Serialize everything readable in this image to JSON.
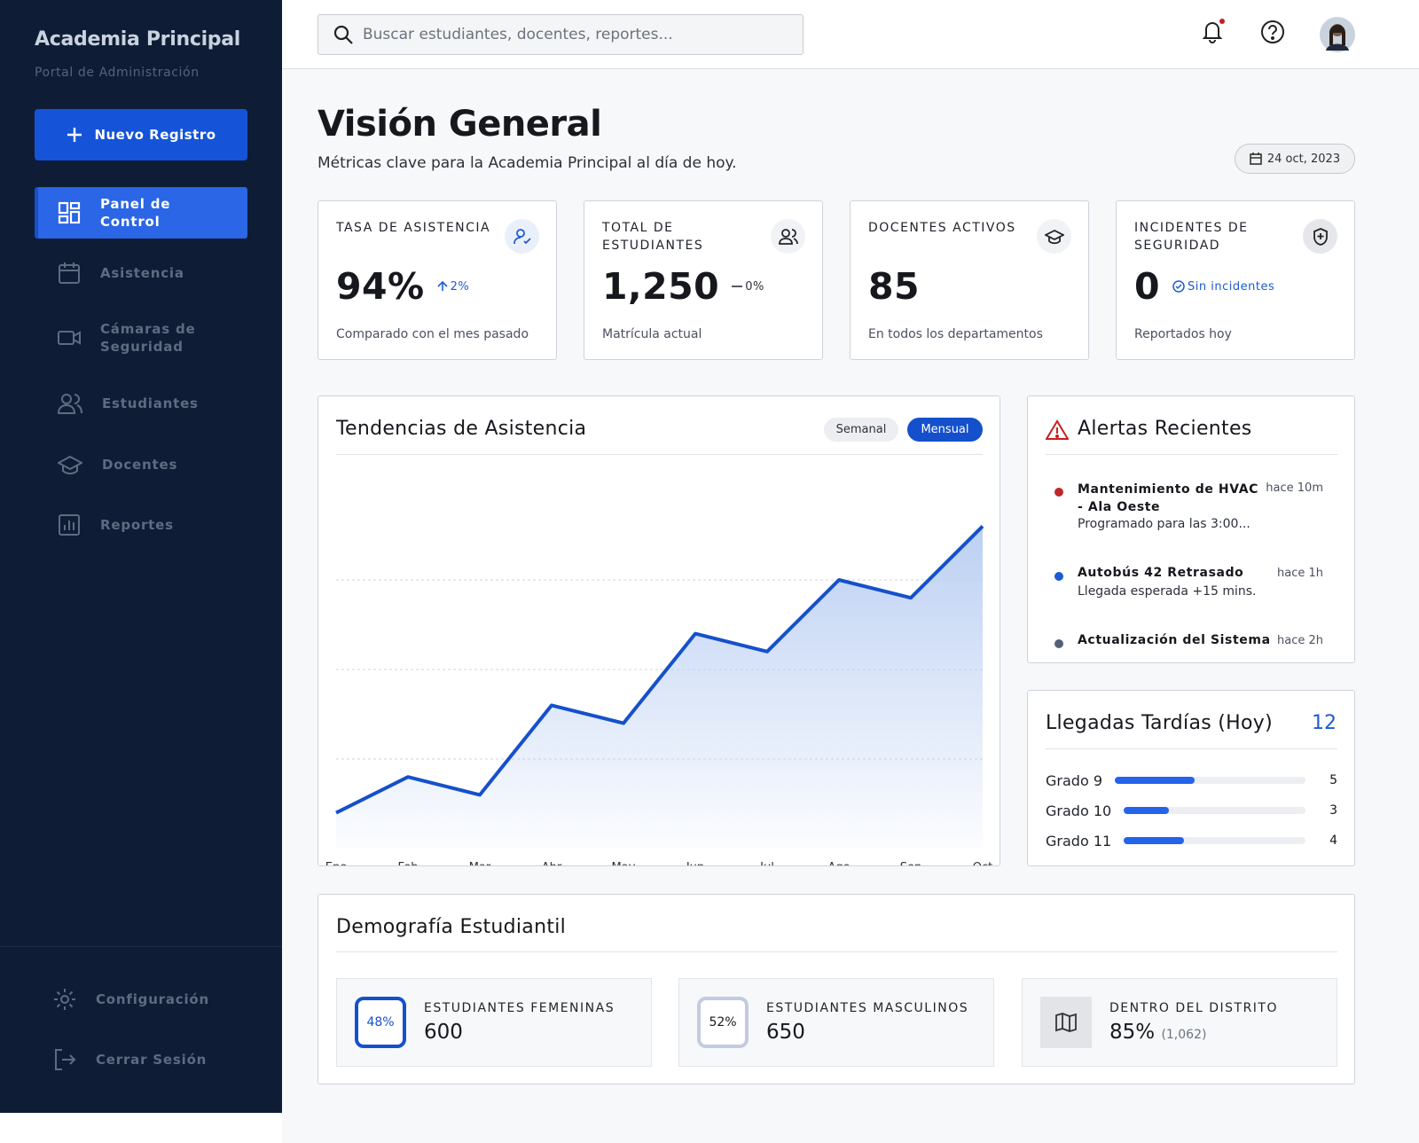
{
  "sidebar": {
    "brand": "Academia Principal",
    "subtitle": "Portal de Administración",
    "new_button": "Nuevo Registro",
    "nav": [
      "Panel de Control",
      "Asistencia",
      "Cámaras de Seguridad",
      "Estudiantes",
      "Docentes",
      "Reportes"
    ],
    "footer_nav": [
      "Configuración",
      "Cerrar Sesión"
    ]
  },
  "search_placeholder": "Buscar estudiantes, docentes, reportes...",
  "page": {
    "title": "Visión General",
    "subtitle": "Métricas clave para la Academia Principal al día de hoy.",
    "date": "24 oct, 2023"
  },
  "kpis": [
    {
      "label": "TASA DE ASISTENCIA",
      "value": "94%",
      "delta": "2%",
      "note": "Comparado con el mes pasado"
    },
    {
      "label": "TOTAL DE ESTUDIANTES",
      "value": "1,250",
      "delta": "0%",
      "note": "Matrícula actual"
    },
    {
      "label": "DOCENTES ACTIVOS",
      "value": "85",
      "note": "En todos los departamentos"
    },
    {
      "label": "INCIDENTES DE SEGURIDAD",
      "value": "0",
      "delta": "Sin incidentes",
      "note": "Reportados hoy"
    }
  ],
  "chart_data": [
    {
      "type": "area",
      "title": "Tendencias de Asistencia",
      "toggles": [
        "Semanal",
        "Mensual"
      ],
      "categories": [
        "Ene",
        "Feb",
        "Mar",
        "Abr",
        "May",
        "Jun",
        "Jul",
        "Ago",
        "Sep",
        "Oct"
      ],
      "values": [
        10,
        20,
        15,
        40,
        35,
        60,
        55,
        75,
        70,
        90
      ],
      "color": "#1550cc",
      "ylim": [
        0,
        100
      ],
      "yticks": [
        25,
        50,
        75
      ],
      "grid": true
    },
    {
      "type": "bar",
      "title": "Llegadas Tardías (Hoy)",
      "total": "12",
      "categories": [
        "Grado 9",
        "Grado 10",
        "Grado 11"
      ],
      "values": [
        5,
        3,
        4
      ],
      "color": "#2563eb",
      "xlim": [
        0,
        12
      ]
    }
  ],
  "alerts": {
    "title": "Alertas Recientes",
    "items": [
      {
        "title": "Mantenimiento de HVAC - Ala Oeste",
        "desc": "Programado para las 3:00...",
        "time": "hace 10m"
      },
      {
        "title": "Autobús 42 Retrasado",
        "desc": "Llegada esperada +15 mins.",
        "time": "hace 1h"
      },
      {
        "title": "Actualización del Sistema",
        "desc": "",
        "time": "hace 2h"
      }
    ]
  },
  "demographics": {
    "title": "Demografía Estudiantil",
    "items": [
      {
        "badge": "48%",
        "label": "ESTUDIANTES FEMENINAS",
        "value": "600"
      },
      {
        "badge": "52%",
        "label": "ESTUDIANTES MASCULINOS",
        "value": "650"
      },
      {
        "label": "DENTRO DEL DISTRITO",
        "value": "85%",
        "extra": "(1,062)"
      }
    ]
  }
}
